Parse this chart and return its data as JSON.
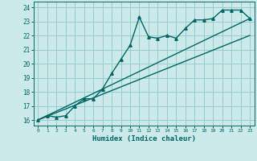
{
  "title": "",
  "xlabel": "Humidex (Indice chaleur)",
  "ylabel": "",
  "bg_color": "#cceaea",
  "grid_color": "#99cccc",
  "line_color": "#006666",
  "xlim": [
    -0.5,
    23.5
  ],
  "ylim": [
    15.6,
    24.4
  ],
  "yticks": [
    16,
    17,
    18,
    19,
    20,
    21,
    22,
    23,
    24
  ],
  "xticks": [
    0,
    1,
    2,
    3,
    4,
    5,
    6,
    7,
    8,
    9,
    10,
    11,
    12,
    13,
    14,
    15,
    16,
    17,
    18,
    19,
    20,
    21,
    22,
    23
  ],
  "data_x": [
    0,
    1,
    2,
    3,
    4,
    5,
    6,
    7,
    8,
    9,
    10,
    11,
    12,
    13,
    14,
    15,
    16,
    17,
    18,
    19,
    20,
    21,
    22,
    23
  ],
  "data_y": [
    16.0,
    16.3,
    16.2,
    16.3,
    17.0,
    17.5,
    17.5,
    18.2,
    19.3,
    20.3,
    21.3,
    23.3,
    21.9,
    21.8,
    22.0,
    21.8,
    22.5,
    23.1,
    23.1,
    23.2,
    23.8,
    23.8,
    23.8,
    23.2
  ],
  "ref_line1_x": [
    0,
    23
  ],
  "ref_line1_y": [
    16.0,
    23.2
  ],
  "ref_line2_x": [
    0,
    23
  ],
  "ref_line2_y": [
    16.0,
    22.0
  ]
}
